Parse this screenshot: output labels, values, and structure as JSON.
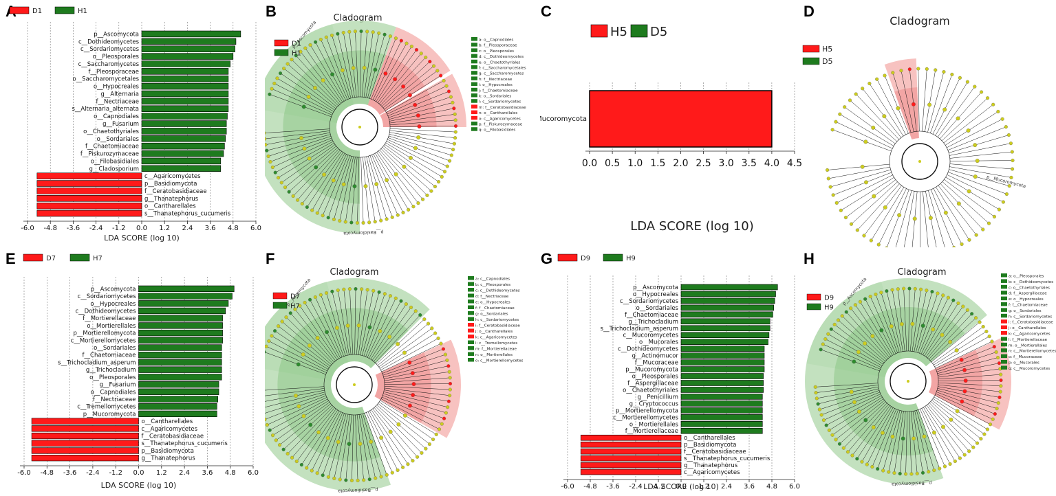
{
  "colors": {
    "red": "#ff1a1a",
    "green": "#1e7b1e",
    "node": "#cccc1f",
    "edge": "#111111"
  },
  "panel_labels": {
    "A": "A",
    "B": "B",
    "C": "C",
    "D": "D",
    "E": "E",
    "F": "F",
    "G": "G",
    "H": "H"
  },
  "chart_data": [
    {
      "panel": "A",
      "type": "bar",
      "orientation": "horizontal",
      "legend": [
        "D1",
        "H1"
      ],
      "xlabel": "LDA SCORE (log 10)",
      "xticks": [
        "-6.0",
        "-4.8",
        "-3.6",
        "-2.4",
        "-1.2",
        "0.0",
        "1.2",
        "2.4",
        "3.6",
        "4.8",
        "6.0"
      ],
      "xlim": [
        -6.0,
        6.0
      ],
      "bars": [
        {
          "label": "p__Ascomycota",
          "value": 5.2,
          "group": "H1"
        },
        {
          "label": "c__Dothideomycetes",
          "value": 4.95,
          "group": "H1"
        },
        {
          "label": "c__Sordariomycetes",
          "value": 4.9,
          "group": "H1"
        },
        {
          "label": "o__Pleosporales",
          "value": 4.8,
          "group": "H1"
        },
        {
          "label": "c__Saccharomycetes",
          "value": 4.65,
          "group": "H1"
        },
        {
          "label": "f__Pleosporaceae",
          "value": 4.55,
          "group": "H1"
        },
        {
          "label": "o__Saccharomycetales",
          "value": 4.55,
          "group": "H1"
        },
        {
          "label": "o__Hypocreales",
          "value": 4.55,
          "group": "H1"
        },
        {
          "label": "g__Alternaria",
          "value": 4.55,
          "group": "H1"
        },
        {
          "label": "f__Nectriaceae",
          "value": 4.55,
          "group": "H1"
        },
        {
          "label": "s__Alternaria_alternata",
          "value": 4.55,
          "group": "H1"
        },
        {
          "label": "o__Capnodiales",
          "value": 4.5,
          "group": "H1"
        },
        {
          "label": "g__Fusarium",
          "value": 4.45,
          "group": "H1"
        },
        {
          "label": "o__Chaetothyriales",
          "value": 4.45,
          "group": "H1"
        },
        {
          "label": "o__Sordariales",
          "value": 4.4,
          "group": "H1"
        },
        {
          "label": "f__Chaetomiaceae",
          "value": 4.35,
          "group": "H1"
        },
        {
          "label": "f__Piskurozymaceae",
          "value": 4.3,
          "group": "H1"
        },
        {
          "label": "o__Filobasidiales",
          "value": 4.15,
          "group": "H1"
        },
        {
          "label": "g__Cladosporium",
          "value": 4.15,
          "group": "H1"
        },
        {
          "label": "c__Agaricomycetes",
          "value": -5.5,
          "group": "D1"
        },
        {
          "label": "p__Basidiomycota",
          "value": -5.5,
          "group": "D1"
        },
        {
          "label": "f__Ceratobasidiaceae",
          "value": -5.5,
          "group": "D1"
        },
        {
          "label": "g__Thanatephorus",
          "value": -5.5,
          "group": "D1"
        },
        {
          "label": "o__Cantharellales",
          "value": -5.5,
          "group": "D1"
        },
        {
          "label": "s__Thanatephorus_cucumeris",
          "value": -5.5,
          "group": "D1"
        }
      ]
    },
    {
      "panel": "B",
      "type": "cladogram",
      "title": "Cladogram",
      "legend": [
        "D1",
        "H1"
      ],
      "key": [
        {
          "text": "a: o__Capnodiales",
          "group": "green"
        },
        {
          "text": "b: f__Pleosporaceae",
          "group": "green"
        },
        {
          "text": "c: o__Pleosporales",
          "group": "green"
        },
        {
          "text": "d: c__Dothideomycetes",
          "group": "green"
        },
        {
          "text": "e: o__Chaetothyriales",
          "group": "green"
        },
        {
          "text": "f: c__Saccharomycetales",
          "group": "green"
        },
        {
          "text": "g: c__Saccharomycetes",
          "group": "green"
        },
        {
          "text": "h: f__Nectriaceae",
          "group": "green"
        },
        {
          "text": "i: o__Hypocreales",
          "group": "green"
        },
        {
          "text": "j: f__Chaetomiaceae",
          "group": "green"
        },
        {
          "text": "k: o__Sordariales",
          "group": "green"
        },
        {
          "text": "l: c__Sordariomycetes",
          "group": "green"
        },
        {
          "text": "m: f__Ceratobasidiaceae",
          "group": "red"
        },
        {
          "text": "n: o__Cantharellales",
          "group": "red"
        },
        {
          "text": "o: c__Agaricomycetes",
          "group": "red"
        },
        {
          "text": "p: f__Piskurozymaceae",
          "group": "green"
        },
        {
          "text": "q: o__Filobasidiales",
          "group": "green"
        }
      ],
      "phylum_labels": {
        "green": "p__Ascomycota",
        "red": "p__Basidiomycota"
      }
    },
    {
      "panel": "C",
      "type": "bar",
      "orientation": "horizontal",
      "legend": [
        "H5",
        "D5"
      ],
      "xlabel": "LDA SCORE (log 10)",
      "xticks": [
        "0.0",
        "0.5",
        "1.0",
        "1.5",
        "2.0",
        "2.5",
        "3.0",
        "3.5",
        "4.0",
        "4.5"
      ],
      "xlim": [
        0.0,
        4.5
      ],
      "bars": [
        {
          "label": "p__Mucoromycota",
          "value": 4.0,
          "group": "H5"
        }
      ]
    },
    {
      "panel": "D",
      "type": "cladogram",
      "title": "Cladogram",
      "legend": [
        "H5",
        "D5"
      ],
      "key": [],
      "phylum_labels": {
        "red": "p__Mucoromycota"
      }
    },
    {
      "panel": "E",
      "type": "bar",
      "orientation": "horizontal",
      "legend": [
        "D7",
        "H7"
      ],
      "xlabel": "LDA SCORE (log 10)",
      "xticks": [
        "-6.0",
        "-4.8",
        "-3.6",
        "-2.4",
        "-1.2",
        "0.0",
        "1.2",
        "2.4",
        "3.6",
        "4.8",
        "6.0"
      ],
      "xlim": [
        -6.0,
        6.0
      ],
      "bars": [
        {
          "label": "p__Ascomycota",
          "value": 5.0,
          "group": "H7"
        },
        {
          "label": "c__Sordariomycetes",
          "value": 4.9,
          "group": "H7"
        },
        {
          "label": "o__Hypocreales",
          "value": 4.7,
          "group": "H7"
        },
        {
          "label": "c__Dothideomycetes",
          "value": 4.55,
          "group": "H7"
        },
        {
          "label": "f__Mortierellaceae",
          "value": 4.4,
          "group": "H7"
        },
        {
          "label": "o__Mortierellales",
          "value": 4.4,
          "group": "H7"
        },
        {
          "label": "p__Mortierellomycota",
          "value": 4.4,
          "group": "H7"
        },
        {
          "label": "c__Mortierellomycetes",
          "value": 4.4,
          "group": "H7"
        },
        {
          "label": "o__Sordariales",
          "value": 4.35,
          "group": "H7"
        },
        {
          "label": "f__Chaetomiaceae",
          "value": 4.35,
          "group": "H7"
        },
        {
          "label": "s__Trichocladium_asperum",
          "value": 4.35,
          "group": "H7"
        },
        {
          "label": "g__Trichocladium",
          "value": 4.35,
          "group": "H7"
        },
        {
          "label": "o__Pleosporales",
          "value": 4.35,
          "group": "H7"
        },
        {
          "label": "g__Fusarium",
          "value": 4.2,
          "group": "H7"
        },
        {
          "label": "o__Capnodiales",
          "value": 4.2,
          "group": "H7"
        },
        {
          "label": "f__Nectriaceae",
          "value": 4.15,
          "group": "H7"
        },
        {
          "label": "c__Tremellomycetes",
          "value": 4.1,
          "group": "H7"
        },
        {
          "label": "p__Mucoromycota",
          "value": 4.1,
          "group": "H7"
        },
        {
          "label": "o__Cantharellales",
          "value": -5.6,
          "group": "D7"
        },
        {
          "label": "c__Agaricomycetes",
          "value": -5.6,
          "group": "D7"
        },
        {
          "label": "f__Ceratobasidiaceae",
          "value": -5.6,
          "group": "D7"
        },
        {
          "label": "s__Thanatephorus_cucumeris",
          "value": -5.6,
          "group": "D7"
        },
        {
          "label": "p__Basidiomycota",
          "value": -5.6,
          "group": "D7"
        },
        {
          "label": "g__Thanatephorus",
          "value": -5.6,
          "group": "D7"
        }
      ]
    },
    {
      "panel": "F",
      "type": "cladogram",
      "title": "Cladogram",
      "legend": [
        "D7",
        "H7"
      ],
      "key": [
        {
          "text": "a: c__Capnodiales",
          "group": "green"
        },
        {
          "text": "b: c__Pleosporales",
          "group": "green"
        },
        {
          "text": "c: c__Dothideomycetes",
          "group": "green"
        },
        {
          "text": "d: f__Nectriaceae",
          "group": "green"
        },
        {
          "text": "e: o__Hypocreales",
          "group": "green"
        },
        {
          "text": "f: f__Chaetomiaceae",
          "group": "green"
        },
        {
          "text": "g: o__Sordariales",
          "group": "green"
        },
        {
          "text": "h: c__Sordariomycetes",
          "group": "green"
        },
        {
          "text": "i: f__Ceratobasidiaceae",
          "group": "red"
        },
        {
          "text": "j: o__Cantharellales",
          "group": "red"
        },
        {
          "text": "k: c__Agaricomycetes",
          "group": "red"
        },
        {
          "text": "l: c__Tremellomycetes",
          "group": "green"
        },
        {
          "text": "m: f__Mortierellaceae",
          "group": "green"
        },
        {
          "text": "n: o__Mortierellales",
          "group": "green"
        },
        {
          "text": "o: c__Mortierellomycetes",
          "group": "green"
        }
      ],
      "phylum_labels": {
        "green": "p__Ascomycota",
        "red": "p__Basidiomycota"
      }
    },
    {
      "panel": "G",
      "type": "bar",
      "orientation": "horizontal",
      "legend": [
        "D9",
        "H9"
      ],
      "xlabel": "LDA SCORE (log 10)",
      "xticks": [
        "-6.0",
        "-4.8",
        "-3.6",
        "-2.4",
        "-1.2",
        "0.0",
        "1.2",
        "2.4",
        "3.6",
        "4.8",
        "6.0"
      ],
      "xlim": [
        -6.0,
        6.0
      ],
      "bars": [
        {
          "label": "p__Ascomycota",
          "value": 5.1,
          "group": "H9"
        },
        {
          "label": "o__Hypocreales",
          "value": 5.0,
          "group": "H9"
        },
        {
          "label": "c__Sordariomycetes",
          "value": 4.95,
          "group": "H9"
        },
        {
          "label": "o__Sordariales",
          "value": 4.9,
          "group": "H9"
        },
        {
          "label": "f__Chaetomiaceae",
          "value": 4.85,
          "group": "H9"
        },
        {
          "label": "g__Trichocladium",
          "value": 4.7,
          "group": "H9"
        },
        {
          "label": "s__Trichocladium_asperum",
          "value": 4.7,
          "group": "H9"
        },
        {
          "label": "c__Mucoromycetes",
          "value": 4.65,
          "group": "H9"
        },
        {
          "label": "o__Mucorales",
          "value": 4.6,
          "group": "H9"
        },
        {
          "label": "c__Dothideomycetes",
          "value": 4.4,
          "group": "H9"
        },
        {
          "label": "g__Actinomucor",
          "value": 4.4,
          "group": "H9"
        },
        {
          "label": "f__Mucoraceae",
          "value": 4.4,
          "group": "H9"
        },
        {
          "label": "p__Mucoromycota",
          "value": 4.4,
          "group": "H9"
        },
        {
          "label": "o__Pleosporales",
          "value": 4.35,
          "group": "H9"
        },
        {
          "label": "f__Aspergillaceae",
          "value": 4.35,
          "group": "H9"
        },
        {
          "label": "o__Chaetothyriales",
          "value": 4.35,
          "group": "H9"
        },
        {
          "label": "g__Penicillium",
          "value": 4.3,
          "group": "H9"
        },
        {
          "label": "g__Cryptococcus",
          "value": 4.3,
          "group": "H9"
        },
        {
          "label": "p__Mortierellomycota",
          "value": 4.3,
          "group": "H9"
        },
        {
          "label": "c__Mortierellomycetes",
          "value": 4.3,
          "group": "H9"
        },
        {
          "label": "o__Mortierellales",
          "value": 4.3,
          "group": "H9"
        },
        {
          "label": "f__Mortierellaceae",
          "value": 4.3,
          "group": "H9"
        },
        {
          "label": "o__Cantharellales",
          "value": -5.3,
          "group": "D9"
        },
        {
          "label": "p__Basidiomycota",
          "value": -5.3,
          "group": "D9"
        },
        {
          "label": "f__Ceratobasidiaceae",
          "value": -5.3,
          "group": "D9"
        },
        {
          "label": "s__Thanatephorus_cucumeris",
          "value": -5.3,
          "group": "D9"
        },
        {
          "label": "g__Thanatephorus",
          "value": -5.3,
          "group": "D9"
        },
        {
          "label": "c__Agaricomycetes",
          "value": -5.3,
          "group": "D9"
        }
      ]
    },
    {
      "panel": "H",
      "type": "cladogram",
      "title": "Cladogram",
      "legend": [
        "D9",
        "H9"
      ],
      "key": [
        {
          "text": "a: o__Pleosporales",
          "group": "green"
        },
        {
          "text": "b: c__Dothideomycetes",
          "group": "green"
        },
        {
          "text": "c: o__Chaetothyriales",
          "group": "green"
        },
        {
          "text": "d: f__Aspergillaceae",
          "group": "green"
        },
        {
          "text": "e: o__Hypocreales",
          "group": "green"
        },
        {
          "text": "f: f__Chaetomiaceae",
          "group": "green"
        },
        {
          "text": "g: o__Sordariales",
          "group": "green"
        },
        {
          "text": "h: c__Sordariomycetes",
          "group": "green"
        },
        {
          "text": "i: f__Ceratobasidiaceae",
          "group": "red"
        },
        {
          "text": "j: o__Cantharellales",
          "group": "red"
        },
        {
          "text": "k: c__Agaricomycetes",
          "group": "red"
        },
        {
          "text": "l: f__Mortierellaceae",
          "group": "green"
        },
        {
          "text": "m: o__Mortierellales",
          "group": "green"
        },
        {
          "text": "n: c__Mortierellomycetes",
          "group": "green"
        },
        {
          "text": "o: f__Mucoraceae",
          "group": "green"
        },
        {
          "text": "p: o__Mucorales",
          "group": "green"
        },
        {
          "text": "q: c__Mucoromycetes",
          "group": "green"
        }
      ],
      "phylum_labels": {
        "green": "p__Ascomycota",
        "red": "p__Basidiomycota"
      }
    }
  ]
}
